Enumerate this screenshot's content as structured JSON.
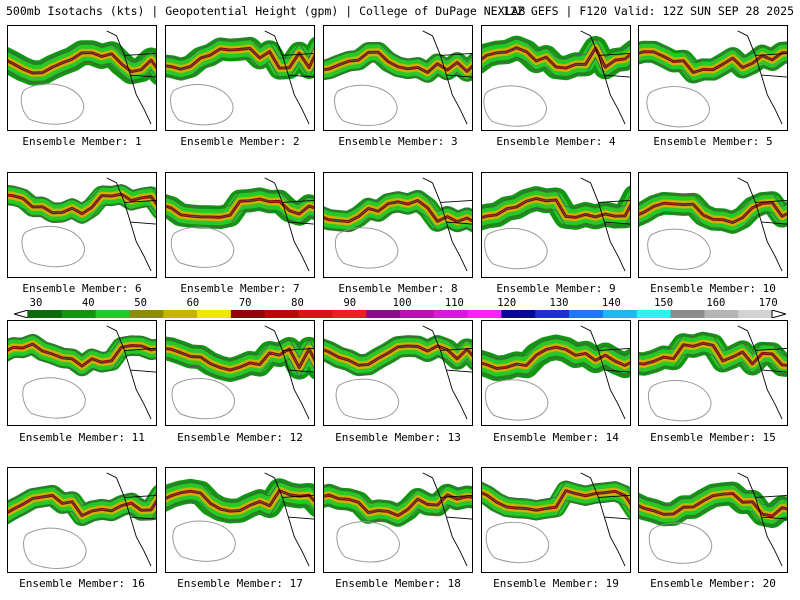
{
  "header": {
    "left": "500mb Isotachs (kts) | Geopotential Height (gpm) | College of DuPage NEXLAB",
    "right": "12Z GEFS | F120 Valid: 12Z SUN SEP 28 2025"
  },
  "colorbar": {
    "labels": [
      "30",
      "40",
      "50",
      "60",
      "70",
      "80",
      "90",
      "100",
      "110",
      "120",
      "130",
      "140",
      "150",
      "160",
      "170"
    ],
    "colors": [
      "#0b6b0b",
      "#129612",
      "#28c828",
      "#8c8c14",
      "#c8b400",
      "#f0e800",
      "#8c0a0a",
      "#b40a0a",
      "#d81414",
      "#f01e1e",
      "#8c0a8c",
      "#b414b4",
      "#d21ed2",
      "#f028f0",
      "#0a0a8c",
      "#1e32c8",
      "#1e78f0",
      "#28b4f0",
      "#32f0f0",
      "#8c8c8c",
      "#b4b4b4",
      "#d2d2d2"
    ]
  },
  "members": [
    {
      "label": "Ensemble Member: 1"
    },
    {
      "label": "Ensemble Member: 2"
    },
    {
      "label": "Ensemble Member: 3"
    },
    {
      "label": "Ensemble Member: 4"
    },
    {
      "label": "Ensemble Member: 5"
    },
    {
      "label": "Ensemble Member: 6"
    },
    {
      "label": "Ensemble Member: 7"
    },
    {
      "label": "Ensemble Member: 8"
    },
    {
      "label": "Ensemble Member: 9"
    },
    {
      "label": "Ensemble Member: 10"
    },
    {
      "label": "Ensemble Member: 11"
    },
    {
      "label": "Ensemble Member: 12"
    },
    {
      "label": "Ensemble Member: 13"
    },
    {
      "label": "Ensemble Member: 14"
    },
    {
      "label": "Ensemble Member: 15"
    },
    {
      "label": "Ensemble Member: 16"
    },
    {
      "label": "Ensemble Member: 17"
    },
    {
      "label": "Ensemble Member: 18"
    },
    {
      "label": "Ensemble Member: 19"
    },
    {
      "label": "Ensemble Member: 20"
    }
  ]
}
